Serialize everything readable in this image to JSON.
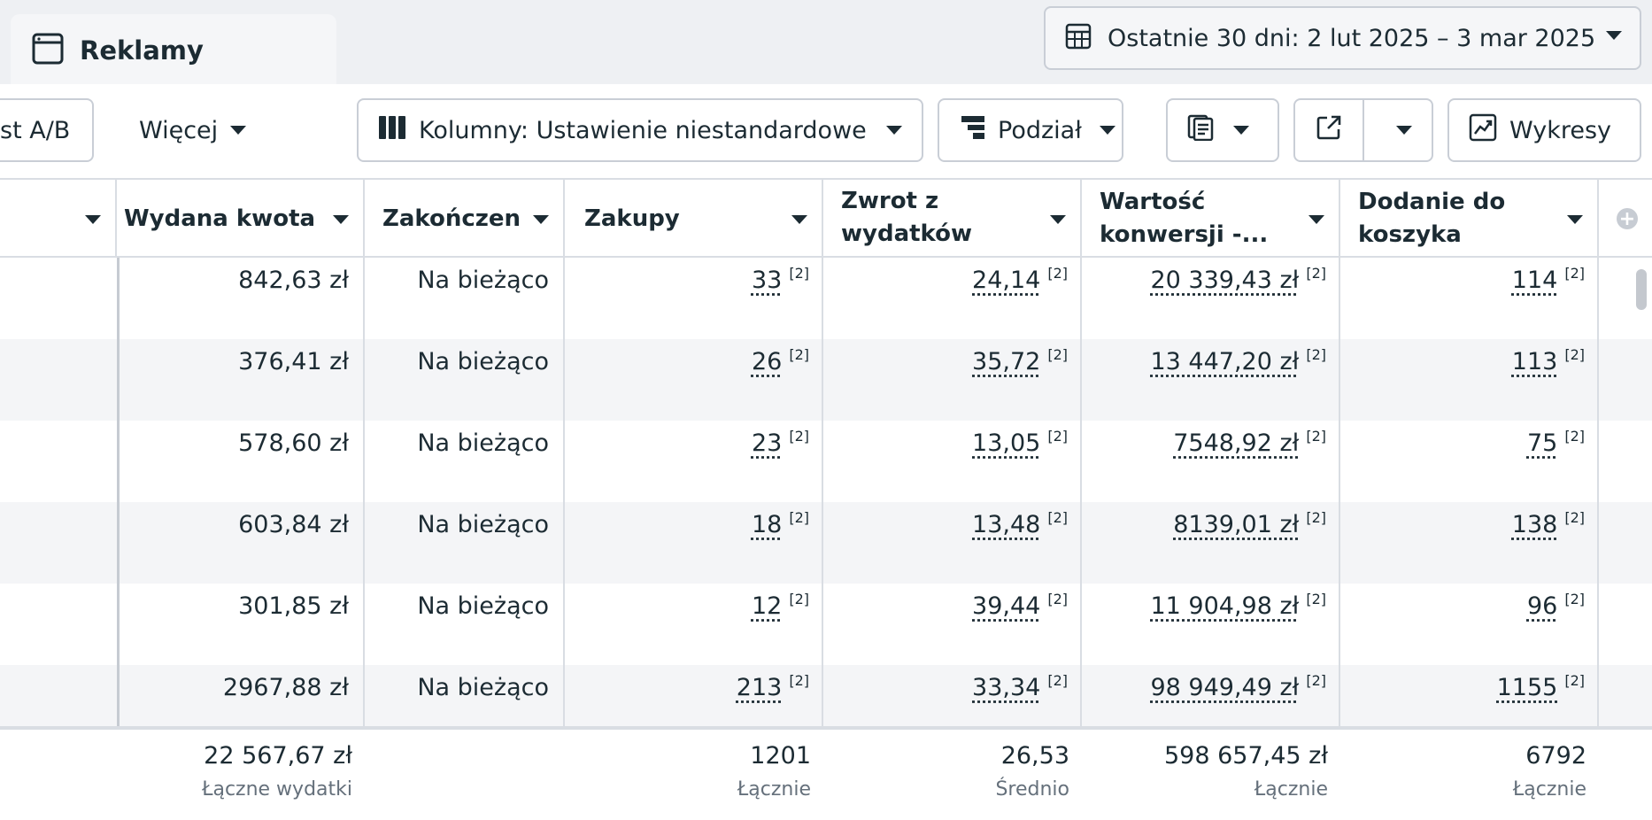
{
  "tab": {
    "label": "Reklamy",
    "icon": "window-icon"
  },
  "date_range": {
    "label": "Ostatnie 30 dni: 2 lut 2025 – 3 mar 2025",
    "icon": "calendar-table-icon"
  },
  "toolbar": {
    "ab_test_label": "st A/B",
    "more_label": "Więcej",
    "columns_label": "Kolumny: Ustawienie niestandardowe",
    "breakdown_label": "Podział",
    "charts_label": "Wykresy"
  },
  "columns": [
    {
      "label": "Wydana kwota"
    },
    {
      "label": "Zakończeni"
    },
    {
      "label": "Zakupy"
    },
    {
      "label": "Zwrot z wydatków na..."
    },
    {
      "label": "Wartość konwersji -..."
    },
    {
      "label": "Dodanie do koszyka"
    }
  ],
  "rows": [
    {
      "spend": "842,63 zł",
      "end": "Na bieżąco",
      "purchases": "33",
      "roas": "24,14",
      "conv_value": "20 339,43 zł",
      "add_to_cart": "114"
    },
    {
      "spend": "376,41 zł",
      "end": "Na bieżąco",
      "purchases": "26",
      "roas": "35,72",
      "conv_value": "13 447,20 zł",
      "add_to_cart": "113"
    },
    {
      "spend": "578,60 zł",
      "end": "Na bieżąco",
      "purchases": "23",
      "roas": "13,05",
      "conv_value": "7548,92 zł",
      "add_to_cart": "75"
    },
    {
      "spend": "603,84 zł",
      "end": "Na bieżąco",
      "purchases": "18",
      "roas": "13,48",
      "conv_value": "8139,01 zł",
      "add_to_cart": "138"
    },
    {
      "spend": "301,85 zł",
      "end": "Na bieżąco",
      "purchases": "12",
      "roas": "39,44",
      "conv_value": "11 904,98 zł",
      "add_to_cart": "96"
    },
    {
      "spend": "2967,88 zł",
      "end": "Na bieżąco",
      "purchases": "213",
      "roas": "33,34",
      "conv_value": "98 949,49 zł",
      "add_to_cart": "1155"
    }
  ],
  "footnote": "[2]",
  "summary": {
    "spend": {
      "value": "22 567,67 zł",
      "label": "Łączne wydatki"
    },
    "purchases": {
      "value": "1201",
      "label": "Łącznie"
    },
    "roas": {
      "value": "26,53",
      "label": "Średnio"
    },
    "conv_value": {
      "value": "598 657,45 zł",
      "label": "Łącznie"
    },
    "add_to_cart": {
      "value": "6792",
      "label": "Łącznie"
    }
  }
}
